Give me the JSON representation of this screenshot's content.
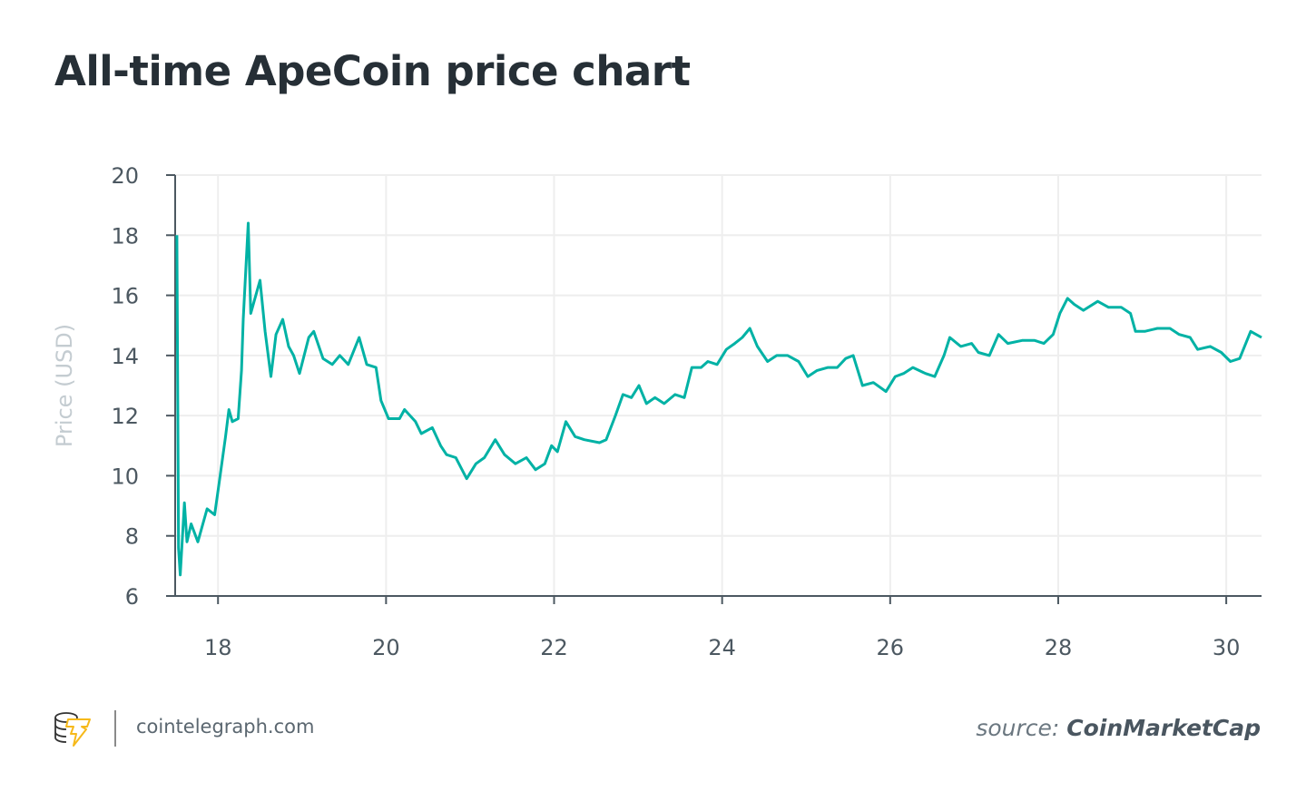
{
  "title": "All-time ApeCoin price chart",
  "footer": {
    "site": "cointelegraph.com",
    "source_prefix": "source:",
    "source_name": "CoinMarketCap",
    "logo": "cointelegraph-logo"
  },
  "colors": {
    "line": "#00b2a5",
    "grid": "#eeeeee",
    "axis": "#4c5861",
    "title": "#262f36"
  },
  "chart_data": {
    "type": "line",
    "title": "All-time ApeCoin price chart",
    "xlabel": "",
    "ylabel": "Price (USD)",
    "xlim": [
      17.49,
      30.42
    ],
    "ylim": [
      6,
      20
    ],
    "xticks": [
      18,
      20,
      22,
      24,
      26,
      28,
      30
    ],
    "yticks": [
      6,
      8,
      10,
      12,
      14,
      16,
      18,
      20
    ],
    "grid": true,
    "series": [
      {
        "name": "ApeCoin price",
        "points": [
          [
            17.51,
            18.0
          ],
          [
            17.53,
            7.6
          ],
          [
            17.55,
            6.7
          ],
          [
            17.6,
            9.1
          ],
          [
            17.63,
            7.8
          ],
          [
            17.68,
            8.4
          ],
          [
            17.76,
            7.8
          ],
          [
            17.87,
            8.9
          ],
          [
            17.96,
            8.7
          ],
          [
            18.02,
            9.9
          ],
          [
            18.09,
            11.3
          ],
          [
            18.13,
            12.2
          ],
          [
            18.17,
            11.8
          ],
          [
            18.24,
            11.9
          ],
          [
            18.28,
            13.5
          ],
          [
            18.3,
            15.2
          ],
          [
            18.36,
            18.4
          ],
          [
            18.39,
            15.4
          ],
          [
            18.43,
            15.8
          ],
          [
            18.5,
            16.5
          ],
          [
            18.56,
            14.8
          ],
          [
            18.63,
            13.3
          ],
          [
            18.69,
            14.7
          ],
          [
            18.77,
            15.2
          ],
          [
            18.84,
            14.3
          ],
          [
            18.9,
            14.0
          ],
          [
            18.97,
            13.4
          ],
          [
            19.08,
            14.6
          ],
          [
            19.14,
            14.8
          ],
          [
            19.25,
            13.9
          ],
          [
            19.36,
            13.7
          ],
          [
            19.45,
            14.0
          ],
          [
            19.55,
            13.7
          ],
          [
            19.68,
            14.6
          ],
          [
            19.77,
            13.7
          ],
          [
            19.88,
            13.6
          ],
          [
            19.94,
            12.5
          ],
          [
            20.03,
            11.9
          ],
          [
            20.16,
            11.9
          ],
          [
            20.22,
            12.2
          ],
          [
            20.35,
            11.8
          ],
          [
            20.42,
            11.4
          ],
          [
            20.55,
            11.6
          ],
          [
            20.65,
            11.0
          ],
          [
            20.72,
            10.7
          ],
          [
            20.83,
            10.6
          ],
          [
            20.96,
            9.9
          ],
          [
            21.07,
            10.4
          ],
          [
            21.17,
            10.6
          ],
          [
            21.3,
            11.2
          ],
          [
            21.41,
            10.7
          ],
          [
            21.54,
            10.4
          ],
          [
            21.67,
            10.6
          ],
          [
            21.78,
            10.2
          ],
          [
            21.89,
            10.4
          ],
          [
            21.97,
            11.0
          ],
          [
            22.04,
            10.8
          ],
          [
            22.14,
            11.8
          ],
          [
            22.25,
            11.3
          ],
          [
            22.36,
            11.2
          ],
          [
            22.54,
            11.1
          ],
          [
            22.62,
            11.2
          ],
          [
            22.73,
            12.0
          ],
          [
            22.82,
            12.7
          ],
          [
            22.92,
            12.6
          ],
          [
            23.01,
            13.0
          ],
          [
            23.1,
            12.4
          ],
          [
            23.2,
            12.6
          ],
          [
            23.31,
            12.4
          ],
          [
            23.44,
            12.7
          ],
          [
            23.55,
            12.6
          ],
          [
            23.64,
            13.6
          ],
          [
            23.75,
            13.6
          ],
          [
            23.83,
            13.8
          ],
          [
            23.94,
            13.7
          ],
          [
            24.05,
            14.2
          ],
          [
            24.15,
            14.4
          ],
          [
            24.24,
            14.6
          ],
          [
            24.33,
            14.9
          ],
          [
            24.42,
            14.3
          ],
          [
            24.54,
            13.8
          ],
          [
            24.65,
            14.0
          ],
          [
            24.78,
            14.0
          ],
          [
            24.91,
            13.8
          ],
          [
            25.02,
            13.3
          ],
          [
            25.13,
            13.5
          ],
          [
            25.26,
            13.6
          ],
          [
            25.37,
            13.6
          ],
          [
            25.47,
            13.9
          ],
          [
            25.56,
            14.0
          ],
          [
            25.67,
            13.0
          ],
          [
            25.8,
            13.1
          ],
          [
            25.95,
            12.8
          ],
          [
            26.06,
            13.3
          ],
          [
            26.16,
            13.4
          ],
          [
            26.27,
            13.6
          ],
          [
            26.42,
            13.4
          ],
          [
            26.53,
            13.3
          ],
          [
            26.64,
            14.0
          ],
          [
            26.71,
            14.6
          ],
          [
            26.84,
            14.3
          ],
          [
            26.97,
            14.4
          ],
          [
            27.05,
            14.1
          ],
          [
            27.18,
            14.0
          ],
          [
            27.29,
            14.7
          ],
          [
            27.4,
            14.4
          ],
          [
            27.57,
            14.5
          ],
          [
            27.72,
            14.5
          ],
          [
            27.83,
            14.4
          ],
          [
            27.94,
            14.7
          ],
          [
            28.02,
            15.4
          ],
          [
            28.11,
            15.9
          ],
          [
            28.19,
            15.7
          ],
          [
            28.3,
            15.5
          ],
          [
            28.47,
            15.8
          ],
          [
            28.6,
            15.6
          ],
          [
            28.75,
            15.6
          ],
          [
            28.86,
            15.4
          ],
          [
            28.92,
            14.8
          ],
          [
            29.03,
            14.8
          ],
          [
            29.18,
            14.9
          ],
          [
            29.33,
            14.9
          ],
          [
            29.44,
            14.7
          ],
          [
            29.57,
            14.6
          ],
          [
            29.66,
            14.2
          ],
          [
            29.81,
            14.3
          ],
          [
            29.94,
            14.1
          ],
          [
            30.05,
            13.8
          ],
          [
            30.16,
            13.9
          ],
          [
            30.29,
            14.8
          ],
          [
            30.42,
            14.6
          ]
        ]
      }
    ]
  }
}
